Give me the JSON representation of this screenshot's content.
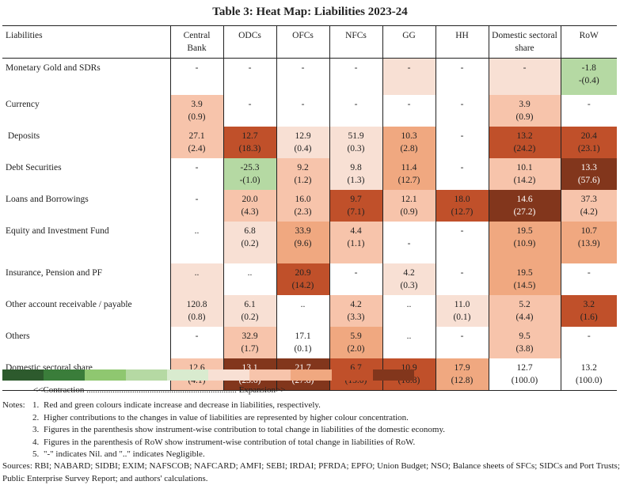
{
  "title": "Table 3: Heat Map: Liabilities 2023-24",
  "columns": [
    "Liabilities",
    "Central Bank",
    "ODCs",
    "OFCs",
    "NFCs",
    "GG",
    "HH",
    "Domestic sectoral share",
    "RoW"
  ],
  "rows": [
    {
      "label": "Monetary Gold and SDRs",
      "cells": [
        [
          "-",
          ""
        ],
        [
          "-",
          ""
        ],
        [
          "-",
          ""
        ],
        [
          "-",
          ""
        ],
        [
          "-",
          ""
        ],
        [
          "-",
          ""
        ],
        [
          "-",
          ""
        ],
        [
          "-1.8",
          "-(0.4)"
        ]
      ],
      "colors": [
        "w",
        "w",
        "w",
        "w",
        "r0",
        "w",
        "r0",
        "g1"
      ]
    },
    {
      "label": "Currency",
      "cells": [
        [
          "3.9",
          "(0.9)"
        ],
        [
          "-",
          ""
        ],
        [
          "-",
          ""
        ],
        [
          "-",
          ""
        ],
        [
          "-",
          ""
        ],
        [
          "-",
          ""
        ],
        [
          "3.9",
          "(0.9)"
        ],
        [
          "-",
          ""
        ]
      ],
      "colors": [
        "r1",
        "w",
        "w",
        "w",
        "w",
        "w",
        "r1",
        "w"
      ]
    },
    {
      "label": " Deposits",
      "cells": [
        [
          "27.1",
          "(2.4)"
        ],
        [
          "12.7",
          "(18.3)"
        ],
        [
          "12.9",
          "(0.4)"
        ],
        [
          "51.9",
          "(0.3)"
        ],
        [
          "10.3",
          "(2.8)"
        ],
        [
          "-",
          ""
        ],
        [
          "13.2",
          "(24.2)"
        ],
        [
          "20.4",
          "(23.1)"
        ]
      ],
      "colors": [
        "r1",
        "r3",
        "r0",
        "r0",
        "r2",
        "w",
        "r3",
        "r3"
      ]
    },
    {
      "label": "Debt Securities",
      "cells": [
        [
          "-",
          ""
        ],
        [
          "-25.3",
          "-(1.0)"
        ],
        [
          "9.2",
          "(1.2)"
        ],
        [
          "9.8",
          "(1.3)"
        ],
        [
          "11.4",
          "(12.7)"
        ],
        [
          "-",
          ""
        ],
        [
          "10.1",
          "(14.2)"
        ],
        [
          "13.3",
          "(57.6)"
        ]
      ],
      "colors": [
        "w",
        "g1",
        "r1",
        "r0",
        "r2",
        "w",
        "r1",
        "r4"
      ]
    },
    {
      "label": "Loans and Borrowings",
      "cells": [
        [
          "-",
          ""
        ],
        [
          "20.0",
          "(4.3)"
        ],
        [
          "16.0",
          "(2.3)"
        ],
        [
          "9.7",
          "(7.1)"
        ],
        [
          "12.1",
          "(0.9)"
        ],
        [
          "18.0",
          "(12.7)"
        ],
        [
          "14.6",
          "(27.2)"
        ],
        [
          "37.3",
          "(4.2)"
        ]
      ],
      "colors": [
        "w",
        "r1",
        "r1",
        "r3",
        "r1",
        "r3",
        "r4",
        "r1"
      ]
    },
    {
      "label": "Equity and Investment Fund",
      "cells": [
        [
          "..",
          ""
        ],
        [
          "6.8",
          "(0.2)"
        ],
        [
          "33.9",
          "(9.6)"
        ],
        [
          "4.4",
          "(1.1)"
        ],
        [
          "",
          "-"
        ],
        [
          "-",
          ""
        ],
        [
          "19.5",
          "(10.9)"
        ],
        [
          "10.7",
          "(13.9)"
        ]
      ],
      "colors": [
        "w",
        "r0",
        "r2",
        "r1",
        "w",
        "w",
        "r2",
        "r2"
      ]
    },
    {
      "label": "Insurance, Pension and PF",
      "cells": [
        [
          "..",
          ""
        ],
        [
          "..",
          ""
        ],
        [
          "20.9",
          "(14.2)"
        ],
        [
          "-",
          ""
        ],
        [
          "4.2",
          "(0.3)"
        ],
        [
          "-",
          ""
        ],
        [
          "19.5",
          "(14.5)"
        ],
        [
          "-",
          ""
        ]
      ],
      "colors": [
        "r0",
        "w",
        "r3",
        "w",
        "r0",
        "w",
        "r2",
        "w"
      ]
    },
    {
      "label": "Other account receivable / payable",
      "cells": [
        [
          "120.8",
          "(0.8)"
        ],
        [
          "6.1",
          "(0.2)"
        ],
        [
          "..",
          ""
        ],
        [
          "4.2",
          "(3.3)"
        ],
        [
          "..",
          ""
        ],
        [
          "11.0",
          "(0.1)"
        ],
        [
          "5.2",
          "(4.4)"
        ],
        [
          "3.2",
          "(1.6)"
        ]
      ],
      "colors": [
        "r0",
        "r0",
        "w",
        "r1",
        "w",
        "r0",
        "r1",
        "r3"
      ]
    },
    {
      "label": "Others",
      "cells": [
        [
          "-",
          ""
        ],
        [
          "32.9",
          "(1.7)"
        ],
        [
          "17.1",
          "(0.1)"
        ],
        [
          "5.9",
          "(2.0)"
        ],
        [
          "..",
          ""
        ],
        [
          "-",
          ""
        ],
        [
          "9.5",
          "(3.8)"
        ],
        [
          "-",
          ""
        ]
      ],
      "colors": [
        "w",
        "r1",
        "w",
        "r2",
        "w",
        "w",
        "r1",
        "w"
      ]
    },
    {
      "label": "Domestic sectoral share",
      "cells": [
        [
          "12.6",
          "(4.1)"
        ],
        [
          "13.1",
          "(23.6)"
        ],
        [
          "21.7",
          "(27.8)"
        ],
        [
          "6.7",
          "(15.0)"
        ],
        [
          "10.9",
          "(16.8)"
        ],
        [
          "17.9",
          "(12.8)"
        ],
        [
          "12.7",
          "(100.0)"
        ],
        [
          "13.2",
          "(100.0)"
        ]
      ],
      "colors": [
        "r1",
        "r4",
        "r4",
        "r3",
        "r3",
        "r2",
        "w",
        "w"
      ]
    }
  ],
  "scale_colors": [
    "#2d5a2d",
    "#3a7d3a",
    "#8fc770",
    "#b5d9a3",
    "#d9ebcf",
    "#f8e0d4",
    "#f7c4ab",
    "#f0a880",
    "#c0502a",
    "#82361c"
  ],
  "scale_label": "<<Contraction ..................................................................... Expansion>>",
  "notes_label": "Notes:",
  "notes": [
    "Red and green colours indicate increase and decrease in liabilities, respectively.",
    "Higher contributions to the changes in value of liabilities are represented by higher colour concentration.",
    "Figures in the parenthesis show instrument-wise contribution to total change in liabilities of the domestic economy.",
    "Figures in the parenthesis of RoW show instrument-wise contribution of total change in liabilities of RoW.",
    "\"-\" indicates Nil. and \"..\" indicates Negligible."
  ],
  "sources": "Sources: RBI; NABARD; SIDBI; EXIM; NAFSCOB; NAFCARD; AMFI; SEBI; IRDAI; PFRDA; EPFO; Union Budget; NSO; Balance sheets of SFCs; SIDCs and Port Trusts; Public Enterprise Survey Report; and authors' calculations."
}
